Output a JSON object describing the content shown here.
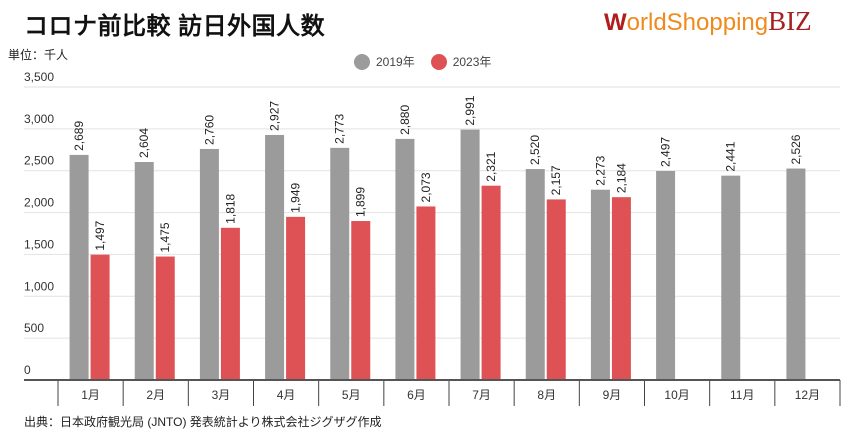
{
  "title": "コロナ前比較 訪日外国人数",
  "logo": {
    "part1": "W",
    "part2": "orldShopping",
    "part3": "BIZ"
  },
  "source": "出典：日本政府観光局 (JNTO) 発表統計より株式会社ジグザグ作成",
  "chart_data": {
    "type": "bar",
    "unit_label": "単位：千人",
    "categories": [
      "1月",
      "2月",
      "3月",
      "4月",
      "5月",
      "6月",
      "7月",
      "8月",
      "9月",
      "10月",
      "11月",
      "12月"
    ],
    "series": [
      {
        "name": "2019年",
        "color": "#9b9b9b",
        "values": [
          2689,
          2604,
          2760,
          2927,
          2773,
          2880,
          2991,
          2520,
          2273,
          2497,
          2441,
          2526
        ],
        "labels": [
          "2,689",
          "2,604",
          "2,760",
          "2,927",
          "2,773",
          "2,880",
          "2,991",
          "2,520",
          "2,273",
          "2,497",
          "2,441",
          "2,526"
        ]
      },
      {
        "name": "2023年",
        "color": "#de5256",
        "values": [
          1497,
          1475,
          1818,
          1949,
          1899,
          2073,
          2321,
          2157,
          2184,
          null,
          null,
          null
        ],
        "labels": [
          "1,497",
          "1,475",
          "1,818",
          "1,949",
          "1,899",
          "2,073",
          "2,321",
          "2,157",
          "2,184",
          "",
          "",
          ""
        ]
      }
    ],
    "ylim": [
      0,
      3500
    ],
    "yticks": [
      0,
      500,
      1000,
      1500,
      2000,
      2500,
      3000,
      3500
    ],
    "ytick_labels": [
      "0",
      "500",
      "1,000",
      "1,500",
      "2,000",
      "2,500",
      "3,000",
      "3,500"
    ],
    "grid": true,
    "legend": "top-center"
  }
}
